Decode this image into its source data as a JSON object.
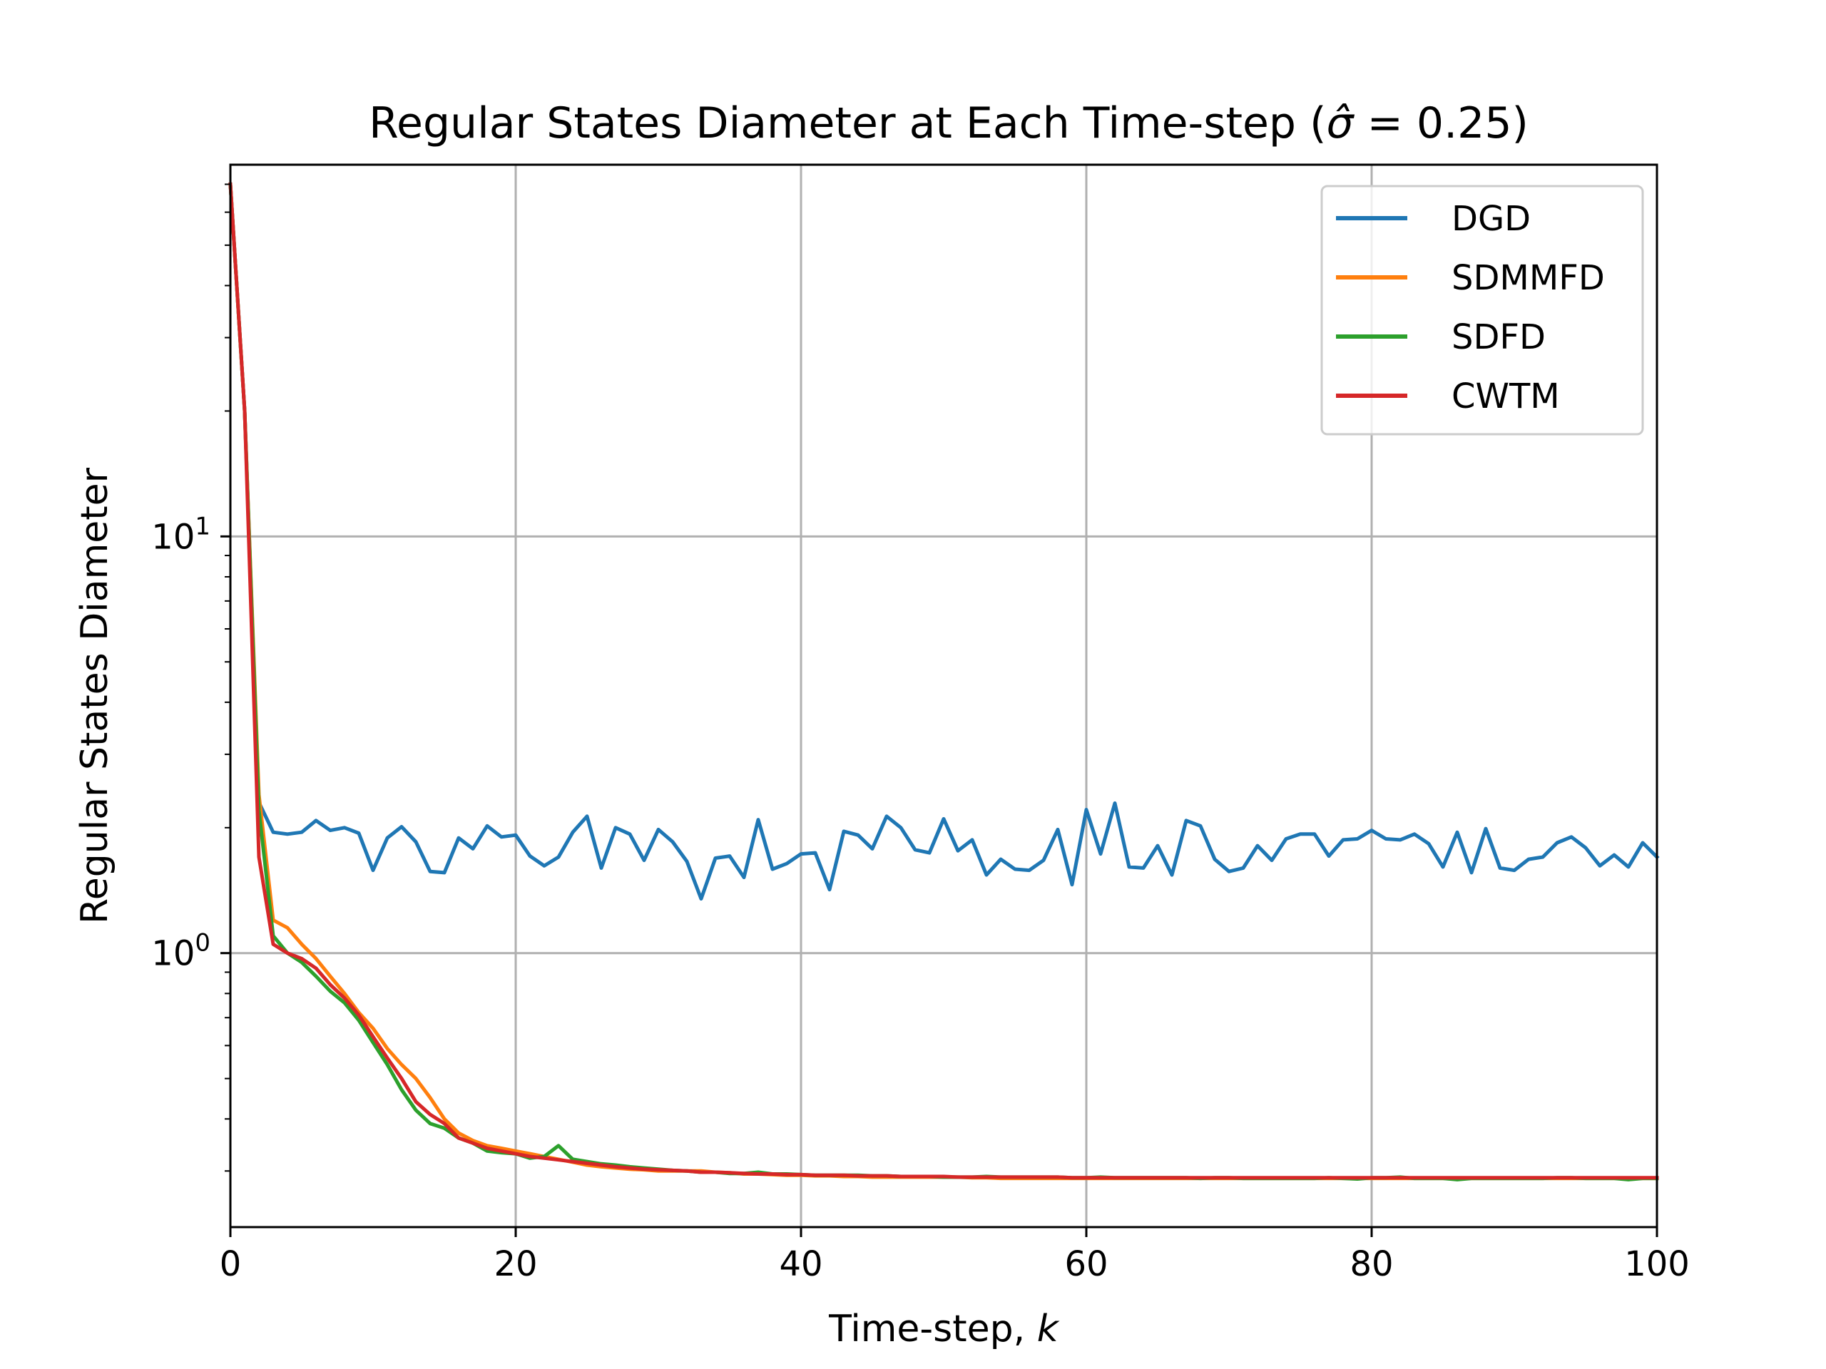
{
  "chart_data": {
    "type": "line",
    "title": "Regular States Diameter at Each Time-step (σ̂ = 0.25)",
    "title_main": "Regular States Diameter at Each Time-step (",
    "title_symbol": "σ̂",
    "title_tail": " = 0.25)",
    "xlabel": "Time-step, ",
    "xlabel_var": "k",
    "ylabel": "Regular States Diameter",
    "xlim": [
      0,
      100
    ],
    "ylim": [
      0.22,
      78
    ],
    "yscale": "log",
    "grid": true,
    "legend_position": "top-right",
    "xticks": [
      0,
      20,
      40,
      60,
      80,
      100
    ],
    "xtick_labels": [
      "0",
      "20",
      "40",
      "60",
      "80",
      "100"
    ],
    "yticks": [
      1,
      10
    ],
    "ytick_labels": [
      {
        "base": "10",
        "exp": "0"
      },
      {
        "base": "10",
        "exp": "1"
      }
    ],
    "x": [
      0,
      1,
      2,
      3,
      4,
      5,
      6,
      7,
      8,
      9,
      10,
      11,
      12,
      13,
      14,
      15,
      16,
      17,
      18,
      19,
      20,
      21,
      22,
      23,
      24,
      25,
      26,
      27,
      28,
      29,
      30,
      31,
      32,
      33,
      34,
      35,
      36,
      37,
      38,
      39,
      40,
      41,
      42,
      43,
      44,
      45,
      46,
      47,
      48,
      49,
      50,
      51,
      52,
      53,
      54,
      55,
      56,
      57,
      58,
      59,
      60,
      61,
      62,
      63,
      64,
      65,
      66,
      67,
      68,
      69,
      70,
      71,
      72,
      73,
      74,
      75,
      76,
      77,
      78,
      79,
      80,
      81,
      82,
      83,
      84,
      85,
      86,
      87,
      88,
      89,
      90,
      91,
      92,
      93,
      94,
      95,
      96,
      97,
      98,
      99,
      100
    ],
    "series": [
      {
        "name": "DGD",
        "color": "#1f77b4",
        "values": [
          70,
          20,
          2.3,
          1.95,
          1.93,
          1.95,
          2.08,
          1.97,
          2.0,
          1.94,
          1.58,
          1.89,
          2.01,
          1.85,
          1.57,
          1.56,
          1.89,
          1.78,
          2.02,
          1.9,
          1.92,
          1.71,
          1.62,
          1.7,
          1.95,
          2.13,
          1.6,
          2.0,
          1.93,
          1.67,
          1.98,
          1.85,
          1.66,
          1.35,
          1.69,
          1.71,
          1.52,
          2.09,
          1.59,
          1.64,
          1.73,
          1.74,
          1.42,
          1.96,
          1.92,
          1.78,
          2.13,
          2.0,
          1.77,
          1.74,
          2.1,
          1.76,
          1.87,
          1.54,
          1.68,
          1.59,
          1.58,
          1.67,
          1.98,
          1.46,
          2.21,
          1.73,
          2.29,
          1.61,
          1.6,
          1.81,
          1.54,
          2.08,
          2.02,
          1.68,
          1.57,
          1.6,
          1.81,
          1.67,
          1.88,
          1.93,
          1.93,
          1.71,
          1.87,
          1.88,
          1.97,
          1.88,
          1.87,
          1.93,
          1.83,
          1.61,
          1.95,
          1.56,
          1.99,
          1.6,
          1.58,
          1.68,
          1.7,
          1.84,
          1.9,
          1.79,
          1.62,
          1.72,
          1.61,
          1.84,
          1.7
        ]
      },
      {
        "name": "SDMMFD",
        "color": "#ff7f0e",
        "values": [
          70,
          20,
          2.4,
          1.2,
          1.15,
          1.05,
          0.97,
          0.88,
          0.8,
          0.72,
          0.66,
          0.59,
          0.54,
          0.5,
          0.45,
          0.4,
          0.37,
          0.355,
          0.345,
          0.34,
          0.335,
          0.33,
          0.325,
          0.32,
          0.315,
          0.31,
          0.307,
          0.305,
          0.303,
          0.302,
          0.3,
          0.3,
          0.3,
          0.3,
          0.298,
          0.297,
          0.295,
          0.295,
          0.294,
          0.293,
          0.293,
          0.292,
          0.292,
          0.291,
          0.291,
          0.29,
          0.29,
          0.29,
          0.29,
          0.29,
          0.29,
          0.29,
          0.289,
          0.289,
          0.288,
          0.288,
          0.288,
          0.288,
          0.288,
          0.288,
          0.288,
          0.288,
          0.288,
          0.288,
          0.288,
          0.288,
          0.288,
          0.288,
          0.288,
          0.288,
          0.288,
          0.288,
          0.288,
          0.288,
          0.288,
          0.288,
          0.288,
          0.288,
          0.288,
          0.288,
          0.288,
          0.288,
          0.288,
          0.288,
          0.288,
          0.288,
          0.288,
          0.288,
          0.288,
          0.288,
          0.288,
          0.288,
          0.288,
          0.288,
          0.288,
          0.288,
          0.288,
          0.288,
          0.288,
          0.288,
          0.288
        ]
      },
      {
        "name": "SDFD",
        "color": "#2ca02c",
        "values": [
          70,
          20,
          2.2,
          1.1,
          1.0,
          0.95,
          0.88,
          0.81,
          0.76,
          0.69,
          0.61,
          0.54,
          0.47,
          0.42,
          0.39,
          0.38,
          0.36,
          0.35,
          0.335,
          0.332,
          0.33,
          0.322,
          0.325,
          0.345,
          0.32,
          0.316,
          0.312,
          0.31,
          0.307,
          0.305,
          0.303,
          0.301,
          0.3,
          0.298,
          0.298,
          0.296,
          0.296,
          0.298,
          0.295,
          0.295,
          0.294,
          0.293,
          0.293,
          0.293,
          0.293,
          0.292,
          0.292,
          0.291,
          0.291,
          0.291,
          0.29,
          0.29,
          0.29,
          0.291,
          0.29,
          0.29,
          0.29,
          0.29,
          0.29,
          0.289,
          0.289,
          0.29,
          0.289,
          0.289,
          0.289,
          0.289,
          0.289,
          0.289,
          0.288,
          0.289,
          0.289,
          0.288,
          0.288,
          0.288,
          0.288,
          0.288,
          0.288,
          0.289,
          0.288,
          0.287,
          0.289,
          0.289,
          0.29,
          0.288,
          0.288,
          0.288,
          0.286,
          0.288,
          0.288,
          0.288,
          0.288,
          0.288,
          0.288,
          0.289,
          0.289,
          0.288,
          0.288,
          0.288,
          0.286,
          0.288,
          0.288
        ]
      },
      {
        "name": "CWTM",
        "color": "#d62728",
        "values": [
          70,
          20,
          1.7,
          1.05,
          1.0,
          0.97,
          0.92,
          0.84,
          0.78,
          0.71,
          0.63,
          0.56,
          0.5,
          0.44,
          0.41,
          0.39,
          0.36,
          0.35,
          0.34,
          0.335,
          0.33,
          0.325,
          0.322,
          0.319,
          0.316,
          0.313,
          0.31,
          0.307,
          0.305,
          0.303,
          0.302,
          0.301,
          0.3,
          0.298,
          0.298,
          0.297,
          0.296,
          0.295,
          0.295,
          0.294,
          0.294,
          0.293,
          0.293,
          0.293,
          0.292,
          0.292,
          0.292,
          0.291,
          0.291,
          0.291,
          0.291,
          0.29,
          0.29,
          0.29,
          0.29,
          0.29,
          0.29,
          0.29,
          0.29,
          0.289,
          0.289,
          0.289,
          0.289,
          0.289,
          0.289,
          0.289,
          0.289,
          0.289,
          0.289,
          0.289,
          0.289,
          0.289,
          0.289,
          0.289,
          0.289,
          0.289,
          0.289,
          0.289,
          0.289,
          0.289,
          0.289,
          0.289,
          0.289,
          0.289,
          0.289,
          0.289,
          0.289,
          0.289,
          0.289,
          0.289,
          0.289,
          0.289,
          0.289,
          0.289,
          0.289,
          0.289,
          0.289,
          0.289,
          0.289,
          0.289,
          0.289
        ]
      }
    ]
  }
}
